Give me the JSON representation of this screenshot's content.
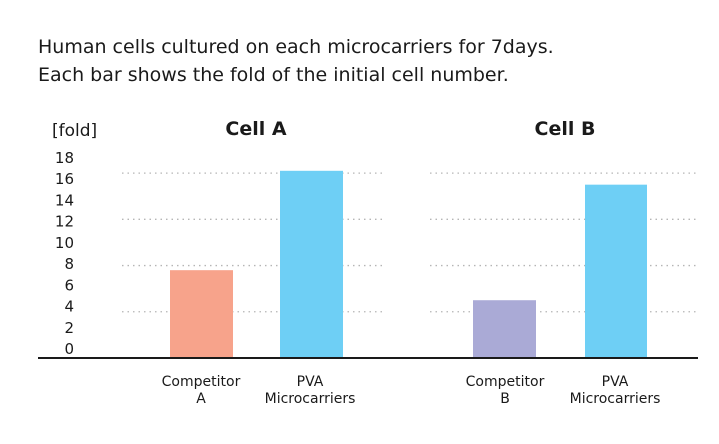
{
  "description": {
    "line1": "Human cells cultured on each microcarriers for 7days.",
    "line2": "Each bar shows the fold of the initial cell number."
  },
  "chart_data": {
    "type": "bar",
    "unit_label": "[fold]",
    "yticks": [
      "0",
      "2",
      "4",
      "6",
      "8",
      "10",
      "12",
      "14",
      "16",
      "18"
    ],
    "ylim": [
      0,
      18
    ],
    "grid": "dotted horizontal",
    "groups": [
      {
        "title": "Cell A",
        "categories": [
          {
            "label": [
              "Competitor",
              "A"
            ],
            "value": 7.6,
            "color": "#f7a38b"
          },
          {
            "label": [
              "PVA",
              "Microcarriers"
            ],
            "value": 16.2,
            "color": "#6ecff5"
          }
        ]
      },
      {
        "title": "Cell B",
        "categories": [
          {
            "label": [
              "Competitor",
              "B"
            ],
            "value": 5.0,
            "color": "#aaaad6"
          },
          {
            "label": [
              "PVA",
              "Microcarriers"
            ],
            "value": 15.0,
            "color": "#6ecff5"
          }
        ]
      }
    ]
  }
}
